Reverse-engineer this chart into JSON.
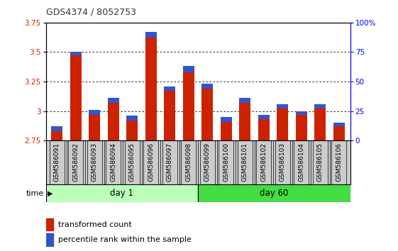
{
  "title": "GDS4374 / 8052753",
  "samples": [
    "GSM586091",
    "GSM586092",
    "GSM586093",
    "GSM586094",
    "GSM586095",
    "GSM586096",
    "GSM586097",
    "GSM586098",
    "GSM586099",
    "GSM586100",
    "GSM586101",
    "GSM586102",
    "GSM586103",
    "GSM586104",
    "GSM586105",
    "GSM586106"
  ],
  "red_values": [
    2.83,
    3.47,
    2.97,
    3.07,
    2.92,
    3.62,
    3.17,
    3.33,
    3.19,
    2.91,
    3.07,
    2.93,
    3.02,
    2.97,
    3.02,
    2.87
  ],
  "blue_values": [
    0.04,
    0.03,
    0.04,
    0.04,
    0.04,
    0.05,
    0.04,
    0.05,
    0.04,
    0.04,
    0.04,
    0.04,
    0.04,
    0.03,
    0.04,
    0.03
  ],
  "base": 2.75,
  "ymin": 2.75,
  "ymax": 3.75,
  "yticks": [
    2.75,
    3.0,
    3.25,
    3.5,
    3.75
  ],
  "ytick_labels": [
    "2.75",
    "3",
    "3.25",
    "3.5",
    "3.75"
  ],
  "right_yticks": [
    0,
    25,
    50,
    75,
    100
  ],
  "right_ytick_labels": [
    "0",
    "25",
    "50",
    "75",
    "100%"
  ],
  "day1_samples": 8,
  "day60_samples": 8,
  "day1_label": "day 1",
  "day60_label": "day 60",
  "time_label": "time",
  "red_color": "#cc2200",
  "blue_color": "#3355cc",
  "day1_color": "#bbffbb",
  "day60_color": "#44dd44",
  "sample_bg_color": "#cccccc",
  "legend_red": "transformed count",
  "legend_blue": "percentile rank within the sample",
  "title_color": "#333333"
}
